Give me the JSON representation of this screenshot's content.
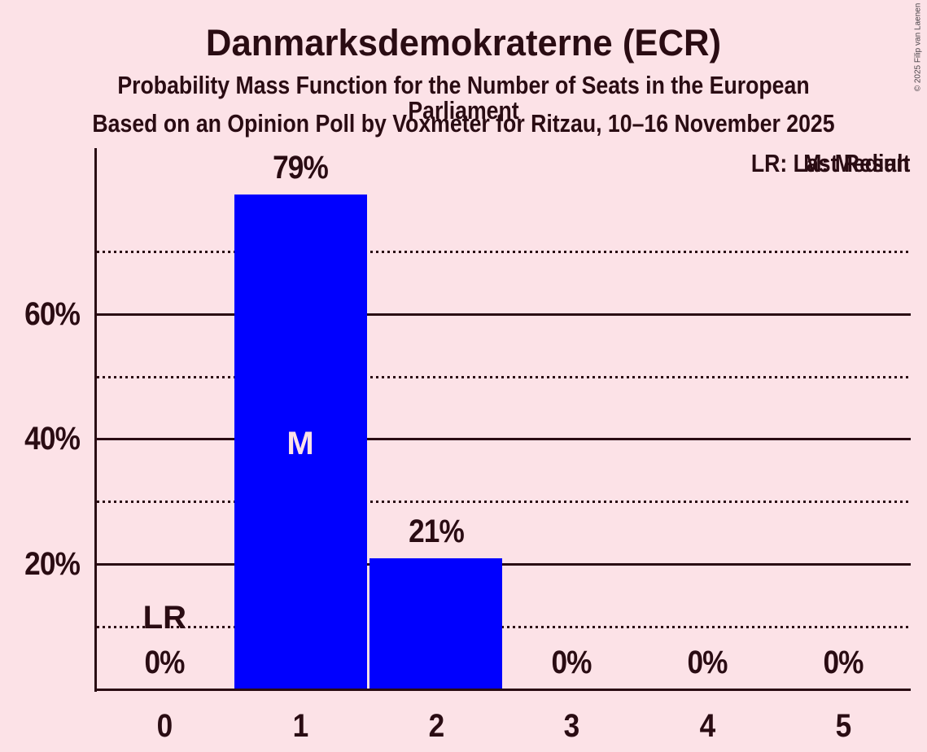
{
  "copyright": "© 2025 Filip van Laenen",
  "colors": {
    "background": "#FCE2E7",
    "text": "#2A0C13",
    "bar": "#0000FF",
    "bar_label": "#FCE2E7",
    "copyright": "#4A4449"
  },
  "chart_data": {
    "type": "bar",
    "title": "Danmarksdemokraterne (ECR)",
    "subtitle": "Probability Mass Function for the Number of Seats in the European Parliament",
    "poll_info": "Based on an Opinion Poll by Voxmeter for Ritzau, 10–16 November 2025",
    "categories": [
      "0",
      "1",
      "2",
      "3",
      "4",
      "5"
    ],
    "values": [
      0,
      79,
      21,
      0,
      0,
      0
    ],
    "bar_labels": [
      "0%",
      "79%",
      "21%",
      "0%",
      "0%",
      "0%"
    ],
    "xlabel": "",
    "ylabel": "",
    "ylim": [
      0,
      86
    ],
    "yticks": [
      {
        "value": 20,
        "label": "20%"
      },
      {
        "value": 40,
        "label": "40%"
      },
      {
        "value": 60,
        "label": "60%"
      }
    ],
    "gridlines_solid": [
      20,
      40,
      60
    ],
    "gridlines_dotted": [
      10,
      30,
      50,
      70
    ],
    "grid": true,
    "legend_position": "top-right",
    "legend": [
      "LR: Last Result",
      "M: Median"
    ],
    "annotations": [
      {
        "label": "LR",
        "category": "0"
      },
      {
        "label": "M",
        "category": "1"
      }
    ]
  }
}
